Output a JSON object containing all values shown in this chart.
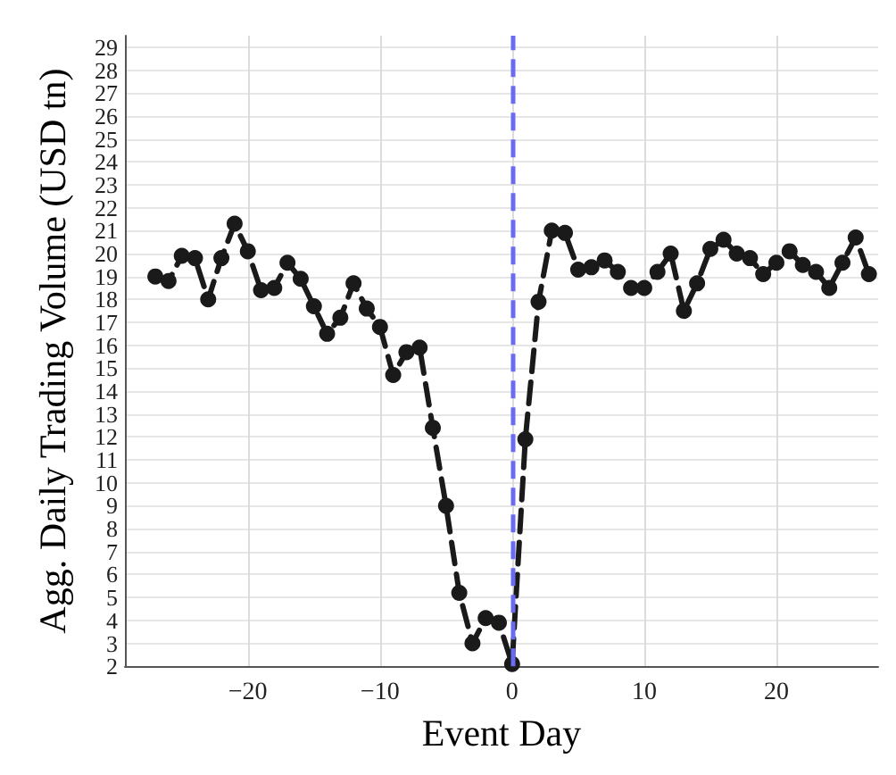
{
  "chart_data": {
    "type": "line",
    "xlabel": "Event Day",
    "ylabel": "Agg. Daily Trading Volume (USD tn)",
    "x": [
      -27,
      -26,
      -25,
      -24,
      -23,
      -22,
      -21,
      -20,
      -19,
      -18,
      -17,
      -16,
      -15,
      -14,
      -13,
      -12,
      -11,
      -10,
      -9,
      -8,
      -7,
      -6,
      -5,
      -4,
      -3,
      -2,
      -1,
      0,
      1,
      2,
      3,
      4,
      5,
      6,
      7,
      8,
      9,
      10,
      11,
      12,
      13,
      14,
      15,
      16,
      17,
      18,
      19,
      20,
      21,
      22,
      23,
      24,
      25,
      26,
      27
    ],
    "series": [
      {
        "color": "#1a1a1a",
        "values": [
          19.0,
          18.8,
          19.9,
          19.8,
          18.0,
          19.8,
          21.3,
          20.1,
          18.4,
          18.5,
          19.6,
          18.9,
          17.7,
          16.5,
          17.2,
          18.7,
          17.6,
          16.8,
          14.7,
          15.7,
          15.9,
          12.4,
          9.0,
          5.2,
          3.0,
          4.1,
          3.9,
          2.1,
          11.9,
          17.9,
          21.0,
          20.9,
          19.3,
          19.4,
          19.7,
          19.2,
          18.5,
          18.5,
          19.2,
          20.0,
          17.5,
          18.7,
          20.2,
          20.6,
          20.0,
          19.8,
          19.1,
          19.6,
          20.1,
          19.5,
          19.2,
          18.5,
          19.6,
          20.7,
          19.1
        ]
      }
    ],
    "xlim": [
      -29.3,
      27.7
    ],
    "xticks": [
      -20,
      -10,
      0,
      10,
      20
    ],
    "ylim": [
      2,
      29.5
    ],
    "yticks": [
      2,
      3,
      4,
      5,
      6,
      7,
      8,
      9,
      10,
      11,
      12,
      13,
      14,
      15,
      16,
      17,
      18,
      19,
      20,
      21,
      22,
      23,
      24,
      25,
      26,
      27,
      28,
      29
    ],
    "grid": true,
    "marker": "circle",
    "line_style": "dashed",
    "ref_lines": [
      {
        "axis": "x",
        "value": 0,
        "color": "#6b6bf2",
        "line_style": "dashed"
      }
    ]
  }
}
